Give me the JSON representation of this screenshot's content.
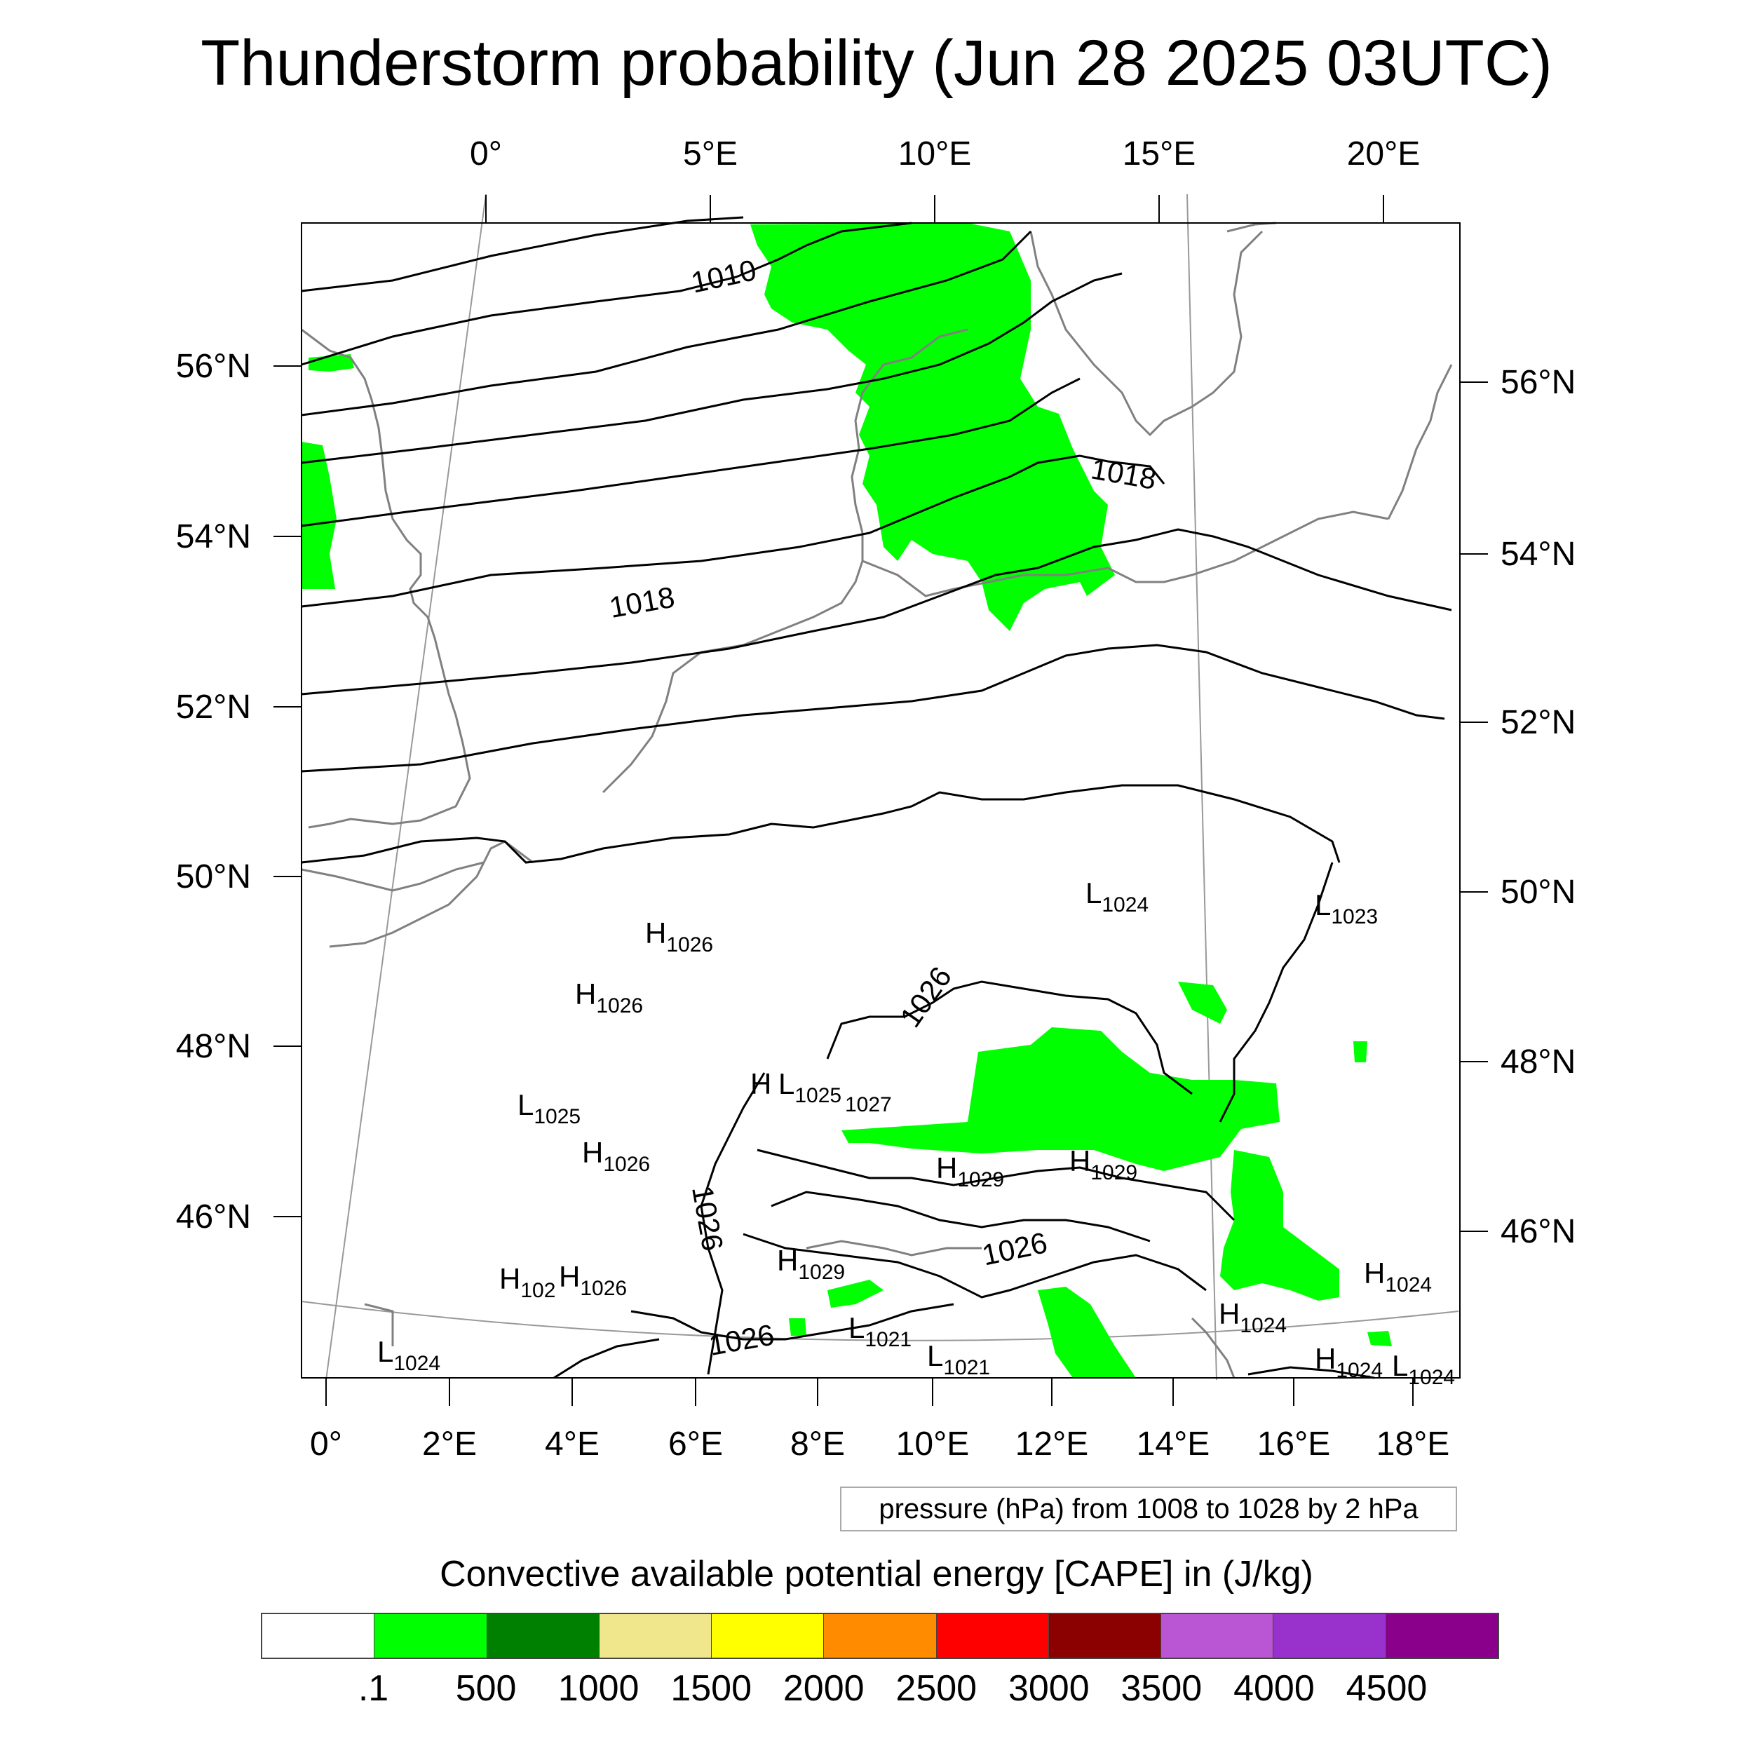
{
  "title": "Thunderstorm probability (Jun 28 2025 03UTC)",
  "top_axis_labels": [
    "0°",
    "5°E",
    "10°E",
    "15°E",
    "20°E"
  ],
  "bottom_axis_labels": [
    "0°",
    "2°E",
    "4°E",
    "6°E",
    "8°E",
    "10°E",
    "12°E",
    "14°E",
    "16°E",
    "18°E"
  ],
  "left_axis_labels": [
    "56°N",
    "54°N",
    "52°N",
    "50°N",
    "48°N",
    "46°N"
  ],
  "right_axis_labels": [
    "56°N",
    "54°N",
    "52°N",
    "50°N",
    "48°N",
    "46°N"
  ],
  "isobar_labels": [
    "1010",
    "1018",
    "1018",
    "1026",
    "1026",
    "1026",
    "1026"
  ],
  "pressure_centers": [
    {
      "letter": "H",
      "value": "1026"
    },
    {
      "letter": "H",
      "value": "1026"
    },
    {
      "letter": "L",
      "value": "1025"
    },
    {
      "letter": "H",
      "value": "1026"
    },
    {
      "letter": "H",
      "value": ""
    },
    {
      "letter": "L",
      "value": "1025"
    },
    {
      "letter": "",
      "value": "1027"
    },
    {
      "letter": "H",
      "value": "1029"
    },
    {
      "letter": "H",
      "value": "1029"
    },
    {
      "letter": "H",
      "value": "1029"
    },
    {
      "letter": "H",
      "value": "102"
    },
    {
      "letter": "H",
      "value": "1026"
    },
    {
      "letter": "L",
      "value": "1021"
    },
    {
      "letter": "L",
      "value": "1021"
    },
    {
      "letter": "L",
      "value": "1024"
    },
    {
      "letter": "L",
      "value": "1024"
    },
    {
      "letter": "L",
      "value": "1023"
    },
    {
      "letter": "H",
      "value": "1024"
    },
    {
      "letter": "H",
      "value": "1024"
    },
    {
      "letter": "H",
      "value": "1024"
    },
    {
      "letter": "L",
      "value": "1024"
    }
  ],
  "pressure_note": "pressure (hPa) from 1008 to 1028 by 2 hPa",
  "legend": {
    "title": "Convective available potential energy [CAPE] in (J/kg)",
    "colors": [
      "#ffffff",
      "#00ff00",
      "#008000",
      "#f0e68c",
      "#ffff00",
      "#ff8c00",
      "#ff0000",
      "#8b0000",
      "#ba55d3",
      "#9932cc",
      "#8b008b"
    ],
    "labels": [
      ".1",
      "500",
      "1000",
      "1500",
      "2000",
      "2500",
      "3000",
      "3500",
      "4000",
      "4500"
    ]
  }
}
